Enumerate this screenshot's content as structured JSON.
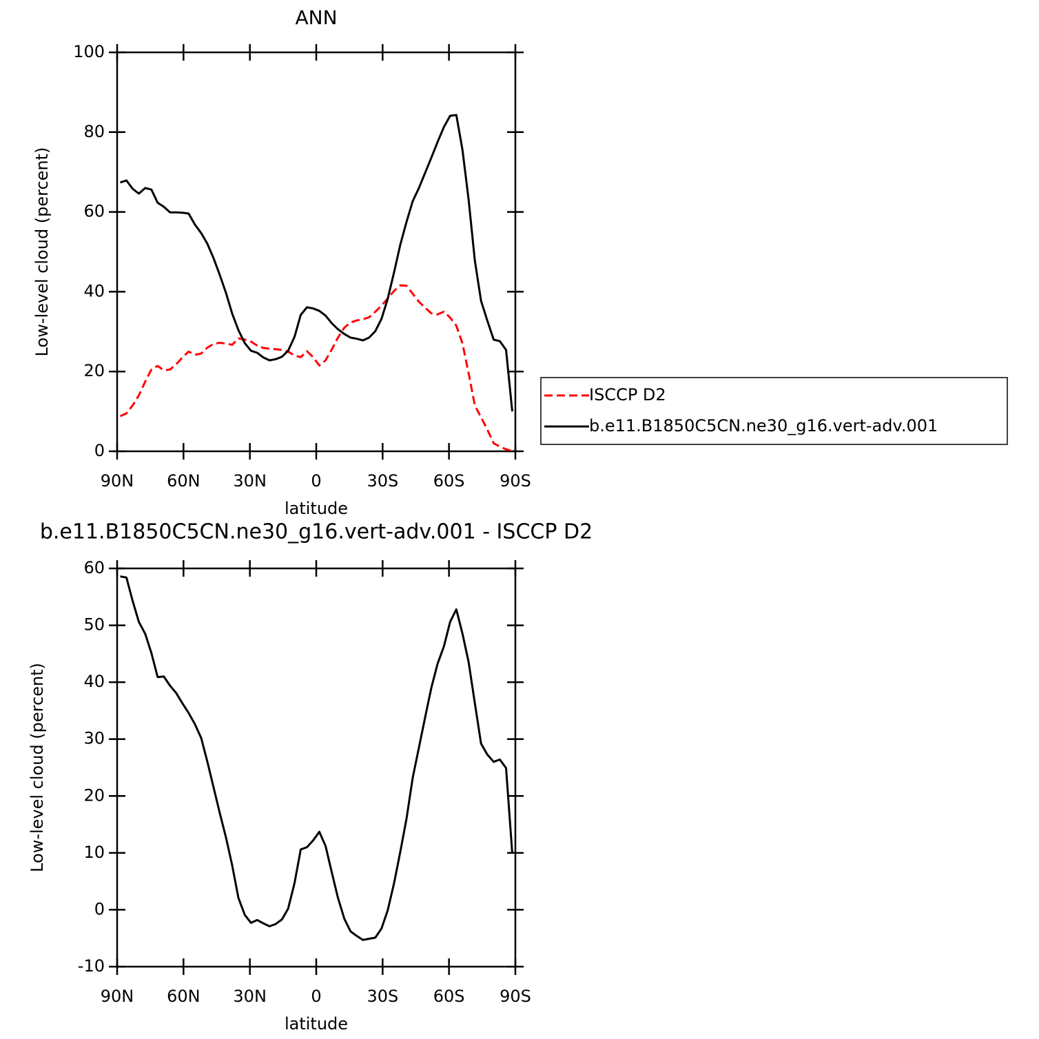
{
  "chart_data": [
    {
      "type": "line",
      "title": "ANN",
      "xlabel": "latitude",
      "ylabel": "Low-level cloud (percent)",
      "x": [
        88.6,
        85.8,
        83.0,
        80.2,
        77.3,
        74.5,
        71.7,
        68.9,
        66.1,
        63.3,
        60.5,
        57.7,
        54.8,
        52.0,
        49.2,
        46.4,
        43.6,
        40.8,
        38.0,
        35.2,
        32.3,
        29.5,
        26.7,
        23.9,
        21.1,
        18.3,
        15.5,
        12.7,
        9.8,
        7.0,
        4.2,
        1.4,
        -1.4,
        -4.2,
        -7.0,
        -9.8,
        -12.7,
        -15.5,
        -18.3,
        -21.1,
        -23.9,
        -26.7,
        -29.5,
        -32.3,
        -35.2,
        -38.0,
        -40.8,
        -43.6,
        -46.4,
        -49.2,
        -52.0,
        -54.8,
        -57.7,
        -60.5,
        -63.3,
        -66.1,
        -68.9,
        -71.7,
        -74.5,
        -77.3,
        -80.2,
        -83.0,
        -85.8,
        -88.6
      ],
      "series": [
        {
          "name": "ISCCP D2",
          "color": "#ff0000",
          "linestyle": "dashed",
          "values": [
            8.8,
            9.5,
            11.5,
            14.0,
            17.5,
            20.5,
            21.4,
            20.3,
            20.5,
            21.8,
            23.5,
            25.0,
            24.2,
            24.5,
            26.0,
            26.9,
            27.2,
            27.0,
            26.7,
            28.3,
            28.0,
            27.5,
            26.5,
            25.9,
            25.7,
            25.6,
            25.4,
            25.0,
            24.0,
            23.6,
            25.1,
            23.6,
            21.5,
            22.8,
            25.5,
            28.5,
            31.0,
            32.3,
            32.8,
            33.1,
            33.6,
            35.0,
            36.5,
            38.3,
            40.2,
            41.6,
            41.5,
            39.5,
            37.5,
            36.0,
            34.6,
            34.3,
            35.0,
            33.5,
            31.5,
            27.0,
            19.5,
            11.5,
            8.5,
            5.5,
            2.0,
            1.2,
            0.5,
            0.1
          ]
        },
        {
          "name": "b.e11.B1850C5CN.ne30_g16.vert-adv.001",
          "color": "#000000",
          "linestyle": "solid",
          "values": [
            67.4,
            67.9,
            65.8,
            64.6,
            66.0,
            65.6,
            62.3,
            61.3,
            59.9,
            59.9,
            59.8,
            59.6,
            56.8,
            54.7,
            52.0,
            48.4,
            44.2,
            39.7,
            34.5,
            30.4,
            27.1,
            25.2,
            24.7,
            23.5,
            22.8,
            23.1,
            23.7,
            25.2,
            28.7,
            34.2,
            36.1,
            35.8,
            35.2,
            34.0,
            32.1,
            30.6,
            29.4,
            28.5,
            28.2,
            27.8,
            28.5,
            30.1,
            33.2,
            38.2,
            44.9,
            51.8,
            57.5,
            62.7,
            66.0,
            69.8,
            73.6,
            77.5,
            81.3,
            84.1,
            84.3,
            75.5,
            63.0,
            47.8,
            37.7,
            32.8,
            28.0,
            27.6,
            25.4,
            10.0
          ]
        }
      ],
      "xlim": [
        90,
        -90
      ],
      "xticks": [
        {
          "value": 90,
          "label": "90N"
        },
        {
          "value": 60,
          "label": "60N"
        },
        {
          "value": 30,
          "label": "30N"
        },
        0,
        {
          "value": -30,
          "label": "30S"
        },
        {
          "value": -60,
          "label": "60S"
        },
        {
          "value": -90,
          "label": "90S"
        }
      ],
      "ylim": [
        0,
        100
      ],
      "yticks": [
        0,
        20,
        40,
        60,
        80,
        100
      ],
      "legend": "right"
    },
    {
      "type": "line",
      "title": "b.e11.B1850C5CN.ne30_g16.vert-adv.001 - ISCCP D2",
      "xlabel": "latitude",
      "ylabel": "Low-level cloud (percent)",
      "x": [
        88.6,
        85.8,
        83.0,
        80.2,
        77.3,
        74.5,
        71.7,
        68.9,
        66.1,
        63.3,
        60.5,
        57.7,
        54.8,
        52.0,
        49.2,
        46.4,
        43.6,
        40.8,
        38.0,
        35.2,
        32.3,
        29.5,
        26.7,
        23.9,
        21.1,
        18.3,
        15.5,
        12.7,
        9.8,
        7.0,
        4.2,
        1.4,
        -1.4,
        -4.2,
        -7.0,
        -9.8,
        -12.7,
        -15.5,
        -18.3,
        -21.1,
        -23.9,
        -26.7,
        -29.5,
        -32.3,
        -35.2,
        -38.0,
        -40.8,
        -43.6,
        -46.4,
        -49.2,
        -52.0,
        -54.8,
        -57.7,
        -60.5,
        -63.3,
        -66.1,
        -68.9,
        -71.7,
        -74.5,
        -77.3,
        -80.2,
        -83.0,
        -85.8,
        -88.6
      ],
      "series": [
        {
          "color": "#000000",
          "linestyle": "solid",
          "values": [
            58.6,
            58.4,
            54.3,
            50.6,
            48.5,
            45.1,
            40.9,
            41.0,
            39.4,
            38.1,
            36.3,
            34.6,
            32.6,
            30.2,
            26.0,
            21.5,
            17.0,
            12.7,
            7.8,
            2.1,
            -0.9,
            -2.3,
            -1.8,
            -2.4,
            -2.9,
            -2.5,
            -1.7,
            0.2,
            4.7,
            10.6,
            11.0,
            12.2,
            13.7,
            11.2,
            6.6,
            2.1,
            -1.6,
            -3.8,
            -4.6,
            -5.3,
            -5.1,
            -4.9,
            -3.3,
            -0.1,
            4.7,
            10.2,
            16.0,
            23.2,
            28.5,
            33.8,
            39.0,
            43.2,
            46.3,
            50.6,
            52.8,
            48.5,
            43.5,
            36.3,
            29.2,
            27.3,
            26.0,
            26.4,
            24.9,
            9.9
          ]
        }
      ],
      "xlim": [
        90,
        -90
      ],
      "xticks": [
        {
          "value": 90,
          "label": "90N"
        },
        {
          "value": 60,
          "label": "60N"
        },
        {
          "value": 30,
          "label": "30N"
        },
        0,
        {
          "value": -30,
          "label": "30S"
        },
        {
          "value": -60,
          "label": "60S"
        },
        {
          "value": -90,
          "label": "90S"
        }
      ],
      "ylim": [
        -10,
        60
      ],
      "yticks": [
        -10,
        0,
        10,
        20,
        30,
        40,
        50,
        60
      ]
    }
  ]
}
